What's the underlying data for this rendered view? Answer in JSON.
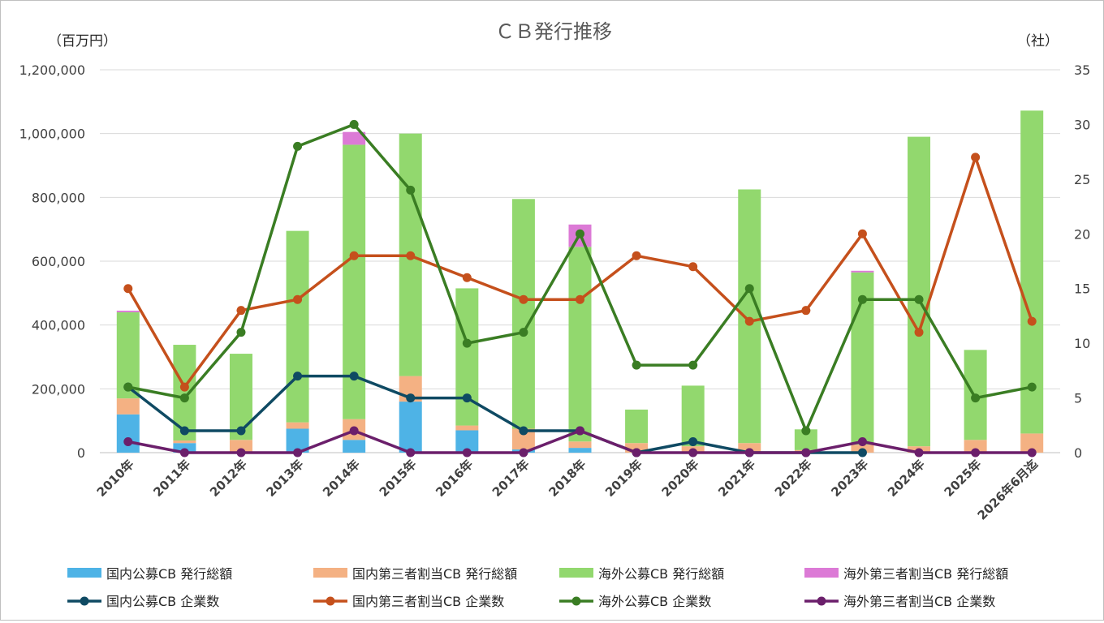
{
  "chart_data": {
    "type": "bar",
    "title": "ＣＢ発行推移",
    "y_unit_left": "（百万円）",
    "y_unit_right": "（社）",
    "categories": [
      "2010年",
      "2011年",
      "2012年",
      "2013年",
      "2014年",
      "2015年",
      "2016年",
      "2017年",
      "2018年",
      "2019年",
      "2020年",
      "2021年",
      "2022年",
      "2023年",
      "2024年",
      "2025年",
      "2026年6月迄"
    ],
    "ylim_left": [
      0,
      1200000
    ],
    "ylim_right": [
      0,
      35
    ],
    "yticks_left": [
      "0",
      "200,000",
      "400,000",
      "600,000",
      "800,000",
      "1,000,000",
      "1,200,000"
    ],
    "yticks_right": [
      "0",
      "5",
      "10",
      "15",
      "20",
      "25",
      "30",
      "35"
    ],
    "grid": true,
    "legend_position": "bottom",
    "series": [
      {
        "name": "国内公募CB 発行総額",
        "kind": "bar",
        "axis": "left",
        "color": "#4eb3e6",
        "values": [
          120000,
          30000,
          0,
          75000,
          40000,
          160000,
          70000,
          10000,
          15000,
          0,
          0,
          0,
          0,
          0,
          0,
          0,
          0
        ]
      },
      {
        "name": "国内第三者割当CB 発行総額",
        "kind": "bar",
        "axis": "left",
        "color": "#f4b183",
        "values": [
          50000,
          8000,
          40000,
          20000,
          65000,
          80000,
          15000,
          65000,
          20000,
          30000,
          20000,
          30000,
          8000,
          25000,
          20000,
          40000,
          60000
        ]
      },
      {
        "name": "海外公募CB 発行総額",
        "kind": "bar",
        "axis": "left",
        "color": "#92d86e",
        "values": [
          270000,
          300000,
          270000,
          600000,
          860000,
          760000,
          430000,
          720000,
          610000,
          105000,
          190000,
          795000,
          65000,
          540000,
          970000,
          282000,
          1012000
        ]
      },
      {
        "name": "海外第三者割当CB 発行総額",
        "kind": "bar",
        "axis": "left",
        "color": "#dc7ad6",
        "values": [
          5000,
          0,
          0,
          0,
          40000,
          0,
          0,
          0,
          70000,
          0,
          0,
          0,
          0,
          5000,
          0,
          0,
          0
        ]
      },
      {
        "name": "国内公募CB 企業数",
        "kind": "line",
        "axis": "right",
        "color": "#0f4a63",
        "values": [
          6,
          2,
          2,
          7,
          7,
          5,
          5,
          2,
          2,
          0,
          1,
          0,
          0,
          0,
          null,
          null,
          null
        ]
      },
      {
        "name": "国内第三者割当CB 企業数",
        "kind": "line",
        "axis": "right",
        "color": "#c5501c",
        "values": [
          15,
          6,
          13,
          14,
          18,
          18,
          16,
          14,
          14,
          18,
          17,
          12,
          13,
          20,
          11,
          27,
          12
        ]
      },
      {
        "name": "海外公募CB 企業数",
        "kind": "line",
        "axis": "right",
        "color": "#3a7d23",
        "values": [
          6,
          5,
          11,
          28,
          30,
          24,
          10,
          11,
          20,
          8,
          8,
          15,
          2,
          14,
          14,
          5,
          6
        ]
      },
      {
        "name": "海外第三者割当CB 企業数",
        "kind": "line",
        "axis": "right",
        "color": "#6b1f6b",
        "values": [
          1,
          0,
          0,
          0,
          2,
          0,
          0,
          0,
          2,
          0,
          0,
          0,
          0,
          1,
          0,
          0,
          0
        ]
      }
    ]
  }
}
